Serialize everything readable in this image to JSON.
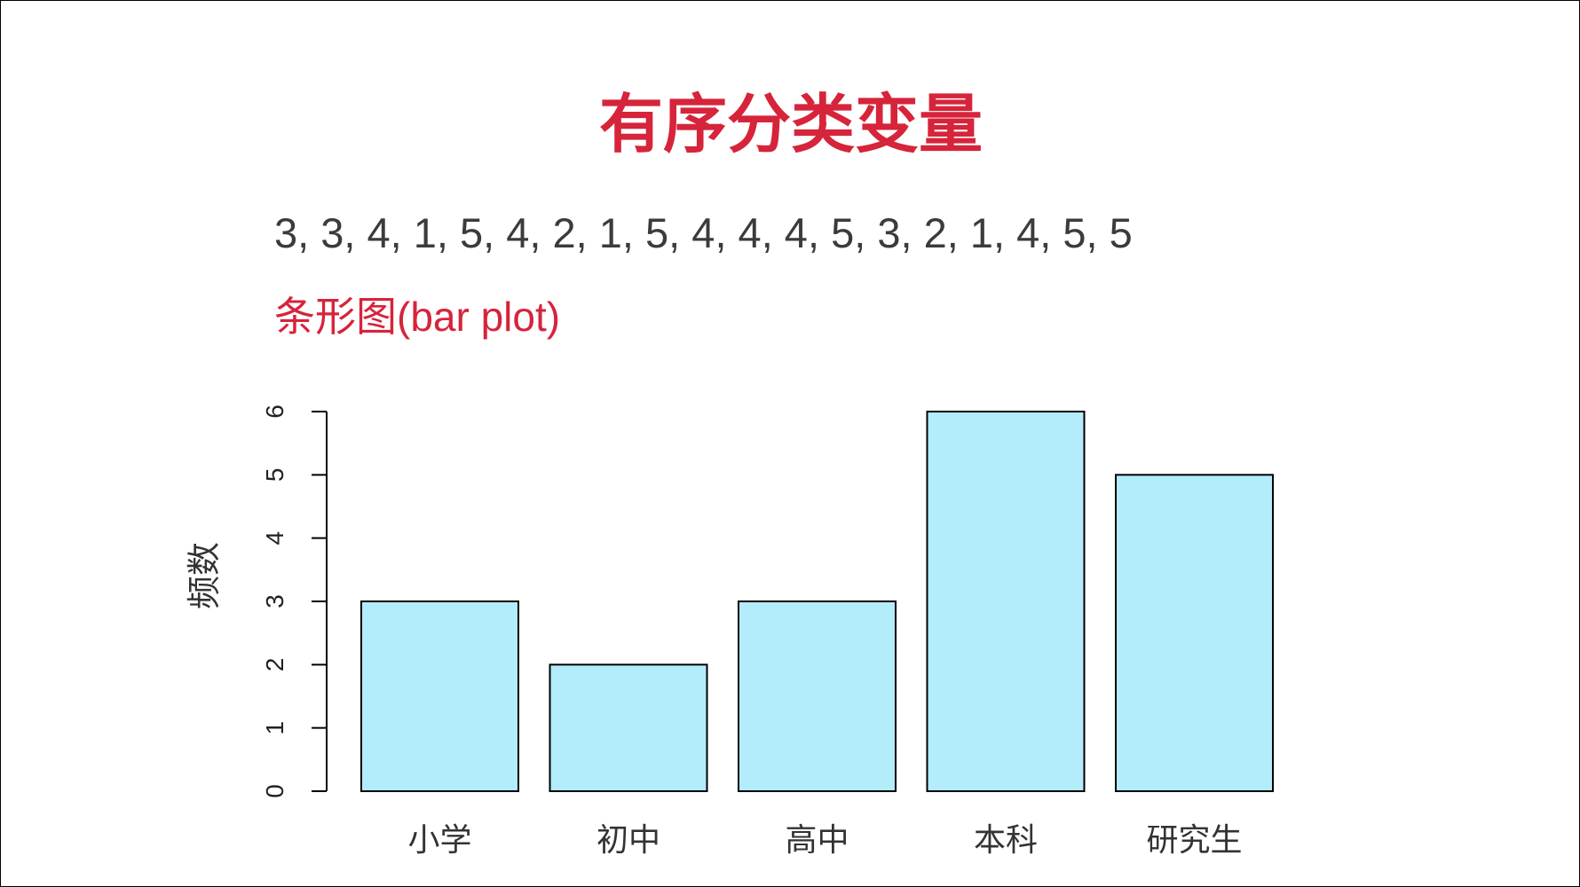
{
  "slide": {
    "title": "有序分类变量",
    "data_values": "3, 3, 4, 1, 5, 4, 2, 1, 5, 4, 4, 4, 5, 3, 2, 1, 4, 5, 5",
    "plot_label": "条形图(bar plot)"
  },
  "colors": {
    "accent": "#d6243b",
    "bar_fill": "#b3ecfb",
    "bar_stroke": "#000000",
    "text": "#3b3b3b"
  },
  "chart_data": {
    "type": "bar",
    "title": "",
    "xlabel": "",
    "ylabel": "频数",
    "categories": [
      "小学",
      "初中",
      "高中",
      "本科",
      "研究生"
    ],
    "values": [
      3,
      2,
      3,
      6,
      5
    ],
    "ylim": [
      0,
      6
    ],
    "yticks": [
      0,
      1,
      2,
      3,
      4,
      5,
      6
    ],
    "grid": false,
    "legend": "none"
  }
}
